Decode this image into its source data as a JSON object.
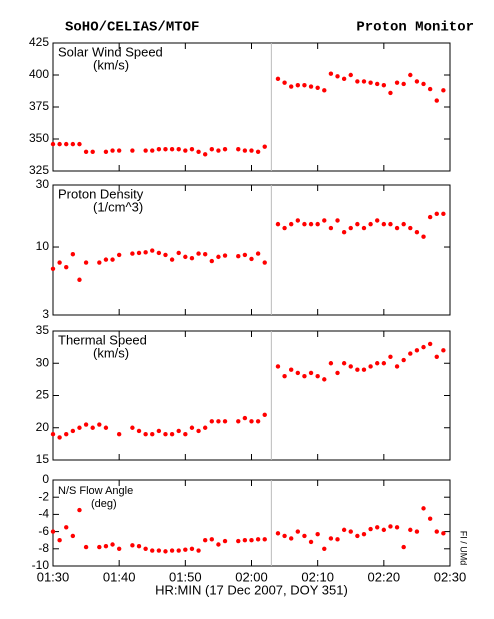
{
  "header": {
    "left": "SoHO/CELIAS/MTOF",
    "right": "Proton Monitor"
  },
  "footer": "FI / UMd",
  "chart_data": [
    {
      "type": "scatter",
      "title": "Solar Wind Speed",
      "units": "(km/s)",
      "vline": "02:03",
      "x": [
        "01:30",
        "01:31",
        "01:32",
        "01:33",
        "01:34",
        "01:35",
        "01:36",
        "01:37",
        "01:38",
        "01:39",
        "01:40",
        "01:41",
        "01:42",
        "01:43",
        "01:44",
        "01:45",
        "01:46",
        "01:47",
        "01:48",
        "01:49",
        "01:50",
        "01:51",
        "01:52",
        "01:53",
        "01:54",
        "01:55",
        "01:56",
        "01:57",
        "01:58",
        "01:59",
        "02:00",
        "02:01",
        "02:02",
        "02:03",
        "02:04",
        "02:05",
        "02:06",
        "02:07",
        "02:08",
        "02:09",
        "02:10",
        "02:11",
        "02:12",
        "02:13",
        "02:14",
        "02:15",
        "02:16",
        "02:17",
        "02:18",
        "02:19",
        "02:20",
        "02:21",
        "02:22",
        "02:23",
        "02:24",
        "02:25",
        "02:26",
        "02:27",
        "02:28",
        "02:29"
      ],
      "xlim": [
        "01:30",
        "02:30"
      ],
      "xticks": [
        "01:30",
        "01:40",
        "01:50",
        "02:00",
        "02:10",
        "02:20",
        "02:30"
      ],
      "ylim": [
        325,
        425
      ],
      "yticks": [
        325,
        350,
        375,
        400,
        425
      ],
      "series": [
        {
          "color": "#ff0000",
          "values": [
            346,
            346,
            346,
            346,
            346,
            340,
            340,
            null,
            340,
            341,
            341,
            null,
            341,
            null,
            341,
            341,
            342,
            342,
            342,
            342,
            341,
            342,
            340,
            338,
            342,
            341,
            342,
            null,
            342,
            341,
            341,
            340,
            344,
            null,
            397,
            394,
            391,
            392,
            392,
            391,
            390,
            388,
            401,
            399,
            397,
            400,
            395,
            395,
            394,
            393,
            392,
            386,
            394,
            393,
            400,
            395,
            393,
            389,
            380,
            388
          ]
        }
      ]
    },
    {
      "type": "scatter",
      "title": "Proton Density",
      "units": "(1/cm^3)",
      "vline": "02:03",
      "log": true,
      "x": [
        "01:30",
        "01:31",
        "01:32",
        "01:33",
        "01:34",
        "01:35",
        "01:36",
        "01:37",
        "01:38",
        "01:39",
        "01:40",
        "01:41",
        "01:42",
        "01:43",
        "01:44",
        "01:45",
        "01:46",
        "01:47",
        "01:48",
        "01:49",
        "01:50",
        "01:51",
        "01:52",
        "01:53",
        "01:54",
        "01:55",
        "01:56",
        "01:57",
        "01:58",
        "01:59",
        "02:00",
        "02:01",
        "02:02",
        "02:03",
        "02:04",
        "02:05",
        "02:06",
        "02:07",
        "02:08",
        "02:09",
        "02:10",
        "02:11",
        "02:12",
        "02:13",
        "02:14",
        "02:15",
        "02:16",
        "02:17",
        "02:18",
        "02:19",
        "02:20",
        "02:21",
        "02:22",
        "02:23",
        "02:24",
        "02:25",
        "02:26",
        "02:27",
        "02:28",
        "02:29"
      ],
      "xlim": [
        "01:30",
        "02:30"
      ],
      "xticks": [
        "01:30",
        "01:40",
        "01:50",
        "02:00",
        "02:10",
        "02:20",
        "02:30"
      ],
      "ylim": [
        3,
        30
      ],
      "yticks": [
        3,
        10,
        30
      ],
      "series": [
        {
          "color": "#ff0000",
          "values": [
            6.8,
            7.6,
            7.0,
            8.8,
            5.6,
            7.6,
            null,
            7.6,
            8.0,
            8.0,
            8.7,
            null,
            8.9,
            9.0,
            9.1,
            9.4,
            9.0,
            8.7,
            8.0,
            9.0,
            8.4,
            8.2,
            8.9,
            8.8,
            7.8,
            8.4,
            8.6,
            null,
            8.5,
            8.7,
            8.1,
            8.9,
            7.6,
            null,
            15,
            14,
            15,
            16,
            15,
            15,
            15,
            16,
            14,
            16,
            13,
            14,
            15,
            14,
            15,
            16,
            15,
            15,
            14,
            15,
            14,
            13,
            12,
            17,
            18,
            18
          ]
        }
      ]
    },
    {
      "type": "scatter",
      "title": "Thermal Speed",
      "units": "(km/s)",
      "vline": "02:03",
      "x": [
        "01:30",
        "01:31",
        "01:32",
        "01:33",
        "01:34",
        "01:35",
        "01:36",
        "01:37",
        "01:38",
        "01:39",
        "01:40",
        "01:41",
        "01:42",
        "01:43",
        "01:44",
        "01:45",
        "01:46",
        "01:47",
        "01:48",
        "01:49",
        "01:50",
        "01:51",
        "01:52",
        "01:53",
        "01:54",
        "01:55",
        "01:56",
        "01:57",
        "01:58",
        "01:59",
        "02:00",
        "02:01",
        "02:02",
        "02:03",
        "02:04",
        "02:05",
        "02:06",
        "02:07",
        "02:08",
        "02:09",
        "02:10",
        "02:11",
        "02:12",
        "02:13",
        "02:14",
        "02:15",
        "02:16",
        "02:17",
        "02:18",
        "02:19",
        "02:20",
        "02:21",
        "02:22",
        "02:23",
        "02:24",
        "02:25",
        "02:26",
        "02:27",
        "02:28",
        "02:29"
      ],
      "xlim": [
        "01:30",
        "02:30"
      ],
      "xticks": [
        "01:30",
        "01:40",
        "01:50",
        "02:00",
        "02:10",
        "02:20",
        "02:30"
      ],
      "ylim": [
        15,
        35
      ],
      "yticks": [
        15,
        20,
        25,
        30,
        35
      ],
      "series": [
        {
          "color": "#ff0000",
          "values": [
            19,
            18.5,
            19,
            19.5,
            20,
            20.5,
            20,
            20.5,
            20,
            null,
            19,
            null,
            20,
            19.5,
            19,
            19,
            19.5,
            19,
            19,
            19.5,
            19,
            20,
            19.5,
            20,
            21,
            21,
            21,
            null,
            21,
            21.5,
            21,
            21,
            22,
            null,
            29.5,
            28,
            29,
            28.5,
            28,
            28.5,
            28,
            27.5,
            30,
            28.5,
            30,
            29.5,
            29,
            29,
            29.5,
            30,
            30,
            31,
            29.5,
            30.5,
            31.5,
            32,
            32.5,
            33,
            31,
            32
          ]
        }
      ]
    },
    {
      "type": "scatter",
      "title": "N/S Flow Angle",
      "units": "(deg)",
      "vline": "02:03",
      "small_title": true,
      "x": [
        "01:30",
        "01:31",
        "01:32",
        "01:33",
        "01:34",
        "01:35",
        "01:36",
        "01:37",
        "01:38",
        "01:39",
        "01:40",
        "01:41",
        "01:42",
        "01:43",
        "01:44",
        "01:45",
        "01:46",
        "01:47",
        "01:48",
        "01:49",
        "01:50",
        "01:51",
        "01:52",
        "01:53",
        "01:54",
        "01:55",
        "01:56",
        "01:57",
        "01:58",
        "01:59",
        "02:00",
        "02:01",
        "02:02",
        "02:03",
        "02:04",
        "02:05",
        "02:06",
        "02:07",
        "02:08",
        "02:09",
        "02:10",
        "02:11",
        "02:12",
        "02:13",
        "02:14",
        "02:15",
        "02:16",
        "02:17",
        "02:18",
        "02:19",
        "02:20",
        "02:21",
        "02:22",
        "02:23",
        "02:24",
        "02:25",
        "02:26",
        "02:27",
        "02:28",
        "02:29"
      ],
      "xlim": [
        "01:30",
        "02:30"
      ],
      "xticks": [
        "01:30",
        "01:40",
        "01:50",
        "02:00",
        "02:10",
        "02:20",
        "02:30"
      ],
      "xlabel": "HR:MIN (17 Dec 2007, DOY 351)",
      "ylim": [
        -10,
        0
      ],
      "yticks": [
        -10,
        -8,
        -6,
        -4,
        -2,
        0
      ],
      "series": [
        {
          "color": "#ff0000",
          "values": [
            -6,
            -7,
            -5.5,
            -6.5,
            -3.5,
            -7.8,
            null,
            -7.8,
            -7.7,
            -7.5,
            -8,
            null,
            -7.6,
            -7.7,
            -8,
            -8.2,
            -8.2,
            -8.3,
            -8.2,
            -8.2,
            -8.1,
            -8,
            -8.2,
            -7,
            -6.9,
            -7.5,
            -7.1,
            null,
            -7.1,
            -7,
            -7,
            -6.9,
            -6.9,
            null,
            -6.2,
            -6.5,
            -6.8,
            -6,
            -6.5,
            -7.2,
            -6.3,
            -8,
            -6.8,
            -6.9,
            -5.8,
            -6,
            -6.5,
            -6.3,
            -5.7,
            -5.5,
            -5.8,
            -5.4,
            -5.5,
            -7.8,
            -5.8,
            -6,
            -3.3,
            -4.5,
            -6,
            -6.2
          ]
        }
      ]
    }
  ]
}
